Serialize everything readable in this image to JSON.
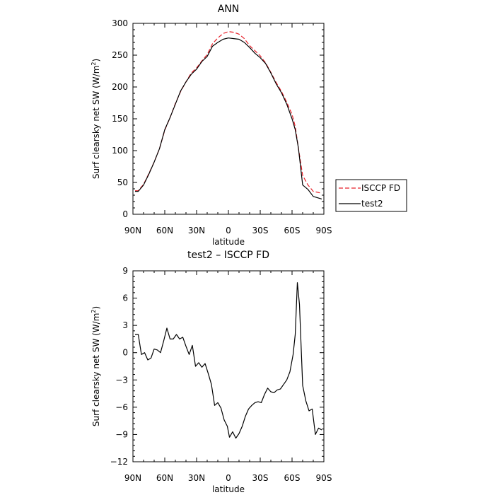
{
  "chart_data": [
    {
      "type": "line",
      "title": "ANN",
      "xlabel": "latitude",
      "ylabel": "Surf clearsky net SW (W/m²)",
      "ylabel_main": "Surf clearsky net SW (W/m",
      "ylabel_sup": "2",
      "ylabel_end": ")",
      "xlim": [
        90,
        -90
      ],
      "ylim": [
        0,
        300
      ],
      "yticks": [
        0,
        50,
        100,
        150,
        200,
        250,
        300
      ],
      "xticks": [
        90,
        60,
        30,
        0,
        -30,
        -60,
        -90
      ],
      "xtick_labels": [
        "90N",
        "60N",
        "30N",
        "0",
        "30S",
        "60S",
        "90S"
      ],
      "legend": [
        "ISCCP FD",
        "test2"
      ],
      "legend_position": "right",
      "series": [
        {
          "name": "ISCCP FD",
          "color": "#e8212a",
          "dash": "dashed",
          "x": [
            88,
            85,
            80,
            75,
            70,
            65,
            60,
            55,
            50,
            45,
            40,
            35,
            30,
            25,
            20,
            15,
            10,
            5,
            0,
            -5,
            -10,
            -15,
            -20,
            -25,
            -30,
            -35,
            -40,
            -45,
            -50,
            -55,
            -60,
            -63,
            -66,
            -70,
            -75,
            -80,
            -88
          ],
          "y": [
            37,
            37,
            47,
            64,
            82,
            103,
            132,
            152,
            174,
            193,
            208,
            222,
            230,
            241,
            251,
            268,
            277,
            284,
            287,
            286,
            283,
            276,
            265,
            257,
            249,
            238,
            223,
            207,
            193,
            176,
            157,
            138,
            104,
            61,
            46,
            36,
            33
          ]
        },
        {
          "name": "test2",
          "color": "#000000",
          "dash": "solid",
          "x": [
            88,
            85,
            80,
            75,
            70,
            65,
            60,
            55,
            50,
            45,
            40,
            35,
            30,
            25,
            20,
            15,
            10,
            5,
            0,
            -5,
            -10,
            -15,
            -20,
            -25,
            -30,
            -35,
            -40,
            -45,
            -50,
            -55,
            -60,
            -63,
            -66,
            -70,
            -75,
            -80,
            -88
          ],
          "y": [
            36,
            36,
            46,
            63,
            82,
            103,
            133,
            152,
            173,
            194,
            208,
            220,
            228,
            240,
            248,
            264,
            270,
            275,
            277,
            276,
            275,
            270,
            262,
            253,
            246,
            237,
            222,
            205,
            191,
            173,
            150,
            133,
            104,
            46,
            39,
            28,
            24
          ]
        }
      ]
    },
    {
      "type": "line",
      "title": "test2 – ISCCP FD",
      "xlabel": "latitude",
      "ylabel": "Surf clearsky net SW (W/m²)",
      "ylabel_main": "Surf clearsky net SW (W/m",
      "ylabel_sup": "2",
      "ylabel_end": ")",
      "xlim": [
        90,
        -90
      ],
      "ylim": [
        -12,
        9
      ],
      "yticks": [
        -12,
        -9,
        -6,
        -3,
        0,
        3,
        6,
        9
      ],
      "xticks": [
        90,
        60,
        30,
        0,
        -30,
        -60,
        -90
      ],
      "xtick_labels": [
        "90N",
        "60N",
        "30N",
        "0",
        "30S",
        "60S",
        "90S"
      ],
      "series": [
        {
          "name": "",
          "color": "#000000",
          "dash": "solid",
          "x": [
            88,
            85,
            82,
            79,
            76,
            73,
            70,
            67,
            64,
            61,
            58,
            55,
            52,
            49,
            46,
            43,
            40,
            37,
            34,
            31,
            28,
            25,
            22,
            19,
            16,
            13,
            10,
            7,
            4,
            1,
            -1,
            -4,
            -7,
            -10,
            -13,
            -16,
            -19,
            -22,
            -25,
            -28,
            -31,
            -34,
            -37,
            -40,
            -43,
            -46,
            -49,
            -52,
            -55,
            -58,
            -61,
            -63,
            -65,
            -67,
            -70,
            -73,
            -76,
            -79,
            -82,
            -85,
            -88
          ],
          "y": [
            2,
            2,
            -0.2,
            0,
            -0.8,
            -0.6,
            0.4,
            0.3,
            0,
            1.3,
            2.7,
            1.5,
            1.5,
            2,
            1.5,
            1.7,
            0.7,
            -0.2,
            0.8,
            -1.5,
            -1.1,
            -1.6,
            -1.2,
            -2.3,
            -3.5,
            -5.8,
            -5.5,
            -6.1,
            -7.4,
            -8.1,
            -9.3,
            -8.7,
            -9.4,
            -8.9,
            -8.1,
            -7,
            -6.2,
            -5.8,
            -5.5,
            -5.4,
            -5.5,
            -4.6,
            -3.9,
            -4.3,
            -4.4,
            -4.1,
            -4,
            -3.5,
            -3,
            -2.1,
            -0.2,
            2,
            7.7,
            5.3,
            -3.6,
            -5.3,
            -6.4,
            -6.2,
            -9,
            -8.3,
            -8.5
          ]
        }
      ]
    }
  ]
}
